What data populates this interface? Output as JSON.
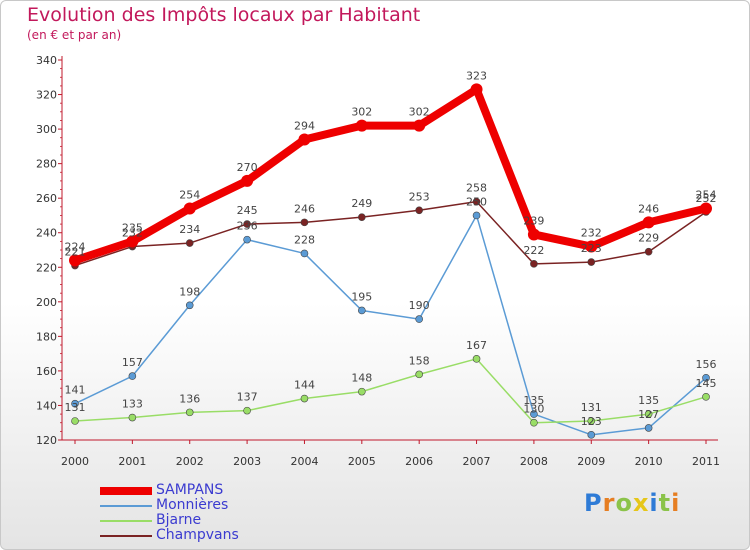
{
  "header": {
    "title": "Evolution des Impôts locaux par Habitant",
    "subtitle": "(en € et par an)"
  },
  "logo": {
    "text": "Proxiti"
  },
  "colors": {
    "title": "#c2185b",
    "legend_text": "#3b3bd0",
    "logo": [
      "#2e7bd6",
      "#e67e22",
      "#8bc34a",
      "#e6c619",
      "#2e7bd6",
      "#8bc34a",
      "#e67e22"
    ]
  },
  "chart_data": {
    "type": "line",
    "title": "Evolution des Impôts locaux par Habitant",
    "subtitle": "(en € et par an)",
    "xlabel": "",
    "ylabel": "",
    "categories": [
      "2000",
      "2001",
      "2002",
      "2003",
      "2004",
      "2005",
      "2006",
      "2007",
      "2008",
      "2009",
      "2010",
      "2011"
    ],
    "ylim": [
      120,
      340
    ],
    "yticks": [
      120,
      140,
      160,
      180,
      200,
      220,
      240,
      260,
      280,
      300,
      320,
      340
    ],
    "grid": false,
    "legend_position": "bottom-left",
    "series": [
      {
        "name": "SAMPANS",
        "color": "#ee0000",
        "width": 8,
        "marker": 6,
        "values": [
          224,
          235,
          254,
          270,
          294,
          302,
          302,
          323,
          239,
          232,
          246,
          254
        ],
        "labels": [
          "224",
          "235",
          "254",
          "270",
          "294",
          "302",
          "302",
          "323",
          "239",
          "232",
          "246",
          "254"
        ]
      },
      {
        "name": "Monnières",
        "color": "#5b9bd5",
        "width": 1.5,
        "marker": 3.5,
        "values": [
          141,
          157,
          198,
          236,
          228,
          195,
          190,
          250,
          135,
          123,
          127,
          156
        ],
        "labels": [
          "141",
          "157",
          "198",
          "236",
          "228",
          "195",
          "190",
          "250",
          "135",
          "123",
          "127",
          "156"
        ]
      },
      {
        "name": "Bjarne",
        "color": "#99dd66",
        "width": 1.5,
        "marker": 3.5,
        "values": [
          131,
          133,
          136,
          137,
          144,
          148,
          158,
          167,
          130,
          131,
          135,
          145
        ],
        "labels": [
          "131",
          "133",
          "136",
          "137",
          "144",
          "148",
          "158",
          "167",
          "130",
          "131",
          "135",
          "145"
        ]
      },
      {
        "name": "Champvans",
        "color": "#7a2323",
        "width": 1.5,
        "marker": 3.5,
        "values": [
          221,
          232,
          234,
          245,
          246,
          249,
          253,
          258,
          222,
          223,
          229,
          252
        ],
        "labels": [
          "221",
          "232",
          "234",
          "245",
          "246",
          "249",
          "253",
          "258",
          "222",
          "223",
          "229",
          "252"
        ]
      }
    ]
  }
}
